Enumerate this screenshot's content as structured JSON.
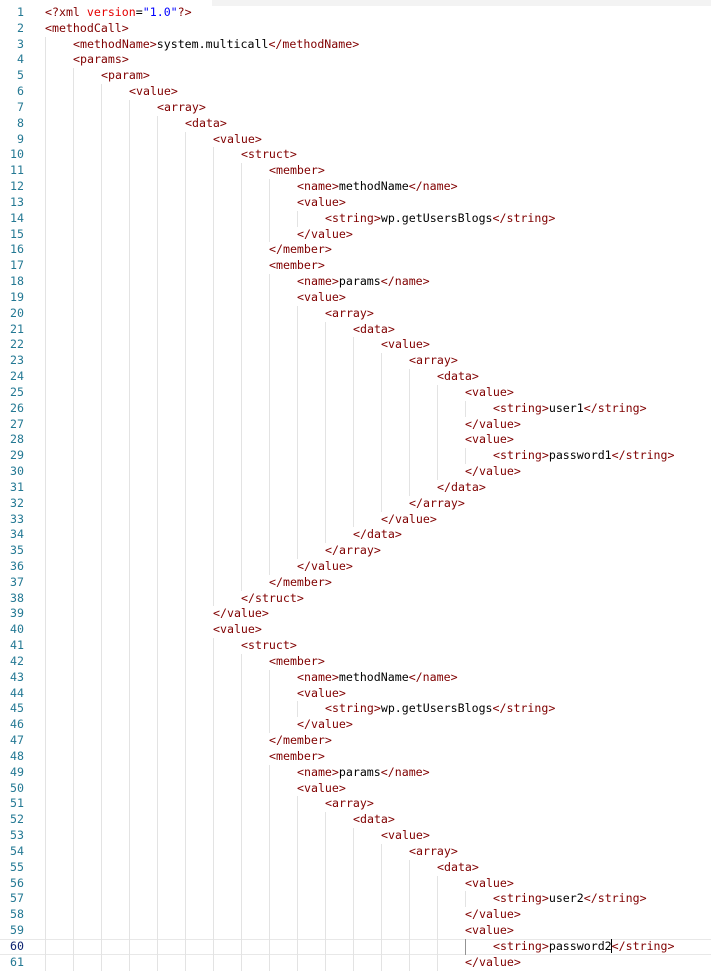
{
  "editor": {
    "language": "xml",
    "active_line": 60,
    "cursor_after_text": "password2",
    "colors": {
      "tag": "#800000",
      "attribute": "#e50000",
      "string": "#0000ff",
      "text": "#000000",
      "line_number": "#237893"
    },
    "lines": [
      {
        "indent": 0,
        "text": "<?xml version=\"1.0\"?>"
      },
      {
        "indent": 0,
        "text": "<methodCall>"
      },
      {
        "indent": 1,
        "text": "<methodName>system.multicall</methodName>"
      },
      {
        "indent": 1,
        "text": "<params>"
      },
      {
        "indent": 2,
        "text": "<param>"
      },
      {
        "indent": 3,
        "text": "<value>"
      },
      {
        "indent": 4,
        "text": "<array>"
      },
      {
        "indent": 5,
        "text": "<data>"
      },
      {
        "indent": 6,
        "text": "<value>"
      },
      {
        "indent": 7,
        "text": "<struct>"
      },
      {
        "indent": 8,
        "text": "<member>"
      },
      {
        "indent": 9,
        "text": "<name>methodName</name>"
      },
      {
        "indent": 9,
        "text": "<value>"
      },
      {
        "indent": 10,
        "text": "<string>wp.getUsersBlogs</string>"
      },
      {
        "indent": 9,
        "text": "</value>"
      },
      {
        "indent": 8,
        "text": "</member>"
      },
      {
        "indent": 8,
        "text": "<member>"
      },
      {
        "indent": 9,
        "text": "<name>params</name>"
      },
      {
        "indent": 9,
        "text": "<value>"
      },
      {
        "indent": 10,
        "text": "<array>"
      },
      {
        "indent": 11,
        "text": "<data>"
      },
      {
        "indent": 12,
        "text": "<value>"
      },
      {
        "indent": 13,
        "text": "<array>"
      },
      {
        "indent": 14,
        "text": "<data>"
      },
      {
        "indent": 15,
        "text": "<value>"
      },
      {
        "indent": 16,
        "text": "<string>user1</string>"
      },
      {
        "indent": 15,
        "text": "</value>"
      },
      {
        "indent": 15,
        "text": "<value>"
      },
      {
        "indent": 16,
        "text": "<string>password1</string>"
      },
      {
        "indent": 15,
        "text": "</value>"
      },
      {
        "indent": 14,
        "text": "</data>"
      },
      {
        "indent": 13,
        "text": "</array>"
      },
      {
        "indent": 12,
        "text": "</value>"
      },
      {
        "indent": 11,
        "text": "</data>"
      },
      {
        "indent": 10,
        "text": "</array>"
      },
      {
        "indent": 9,
        "text": "</value>"
      },
      {
        "indent": 8,
        "text": "</member>"
      },
      {
        "indent": 7,
        "text": "</struct>"
      },
      {
        "indent": 6,
        "text": "</value>"
      },
      {
        "indent": 6,
        "text": "<value>"
      },
      {
        "indent": 7,
        "text": "<struct>"
      },
      {
        "indent": 8,
        "text": "<member>"
      },
      {
        "indent": 9,
        "text": "<name>methodName</name>"
      },
      {
        "indent": 9,
        "text": "<value>"
      },
      {
        "indent": 10,
        "text": "<string>wp.getUsersBlogs</string>"
      },
      {
        "indent": 9,
        "text": "</value>"
      },
      {
        "indent": 8,
        "text": "</member>"
      },
      {
        "indent": 8,
        "text": "<member>"
      },
      {
        "indent": 9,
        "text": "<name>params</name>"
      },
      {
        "indent": 9,
        "text": "<value>"
      },
      {
        "indent": 10,
        "text": "<array>"
      },
      {
        "indent": 11,
        "text": "<data>"
      },
      {
        "indent": 12,
        "text": "<value>"
      },
      {
        "indent": 13,
        "text": "<array>"
      },
      {
        "indent": 14,
        "text": "<data>"
      },
      {
        "indent": 15,
        "text": "<value>"
      },
      {
        "indent": 16,
        "text": "<string>user2</string>"
      },
      {
        "indent": 15,
        "text": "</value>"
      },
      {
        "indent": 15,
        "text": "<value>"
      },
      {
        "indent": 16,
        "text": "<string>password2</string>"
      },
      {
        "indent": 15,
        "text": "</value>"
      }
    ]
  }
}
